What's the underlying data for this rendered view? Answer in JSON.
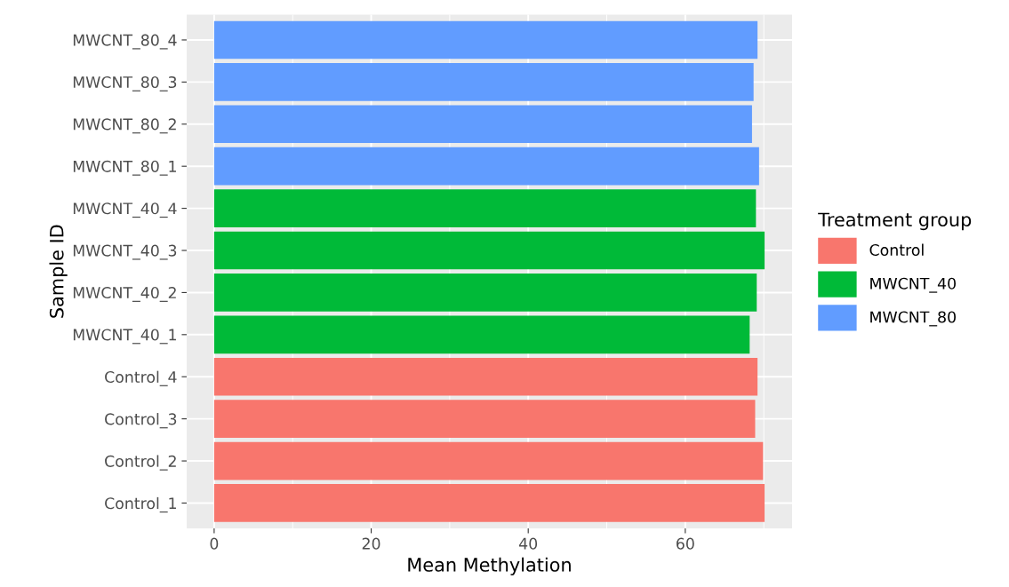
{
  "chart_data": {
    "type": "bar",
    "orientation": "horizontal",
    "xlabel": "Mean Methylation",
    "ylabel": "Sample ID",
    "legend_title": "Treatment group",
    "legend": "right",
    "grid": true,
    "categories": [
      "MWCNT_80_4",
      "MWCNT_80_3",
      "MWCNT_80_2",
      "MWCNT_80_1",
      "MWCNT_40_4",
      "MWCNT_40_3",
      "MWCNT_40_2",
      "MWCNT_40_1",
      "Control_4",
      "Control_3",
      "Control_2",
      "Control_1"
    ],
    "series": [
      {
        "name": "Control",
        "color": "#f8766d",
        "values": [
          null,
          null,
          null,
          null,
          null,
          null,
          null,
          null,
          69.2,
          68.9,
          69.9,
          70.1
        ]
      },
      {
        "name": "MWCNT_40",
        "color": "#00ba38",
        "values": [
          null,
          null,
          null,
          null,
          69.0,
          70.1,
          69.1,
          68.2,
          null,
          null,
          null,
          null
        ]
      },
      {
        "name": "MWCNT_80",
        "color": "#619cff",
        "values": [
          69.2,
          68.7,
          68.5,
          69.4,
          null,
          null,
          null,
          null,
          null,
          null,
          null,
          null
        ]
      }
    ],
    "xlim": [
      -3.5,
      73.6
    ],
    "xticks": [
      0,
      20,
      40,
      60
    ]
  }
}
